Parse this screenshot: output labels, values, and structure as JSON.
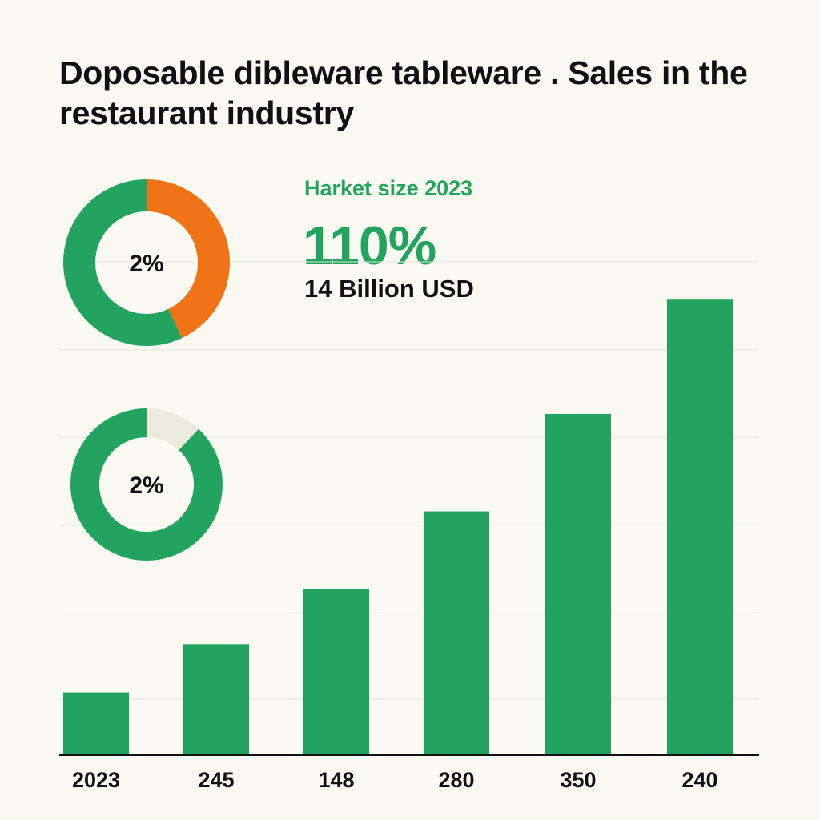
{
  "title": "Doposable dibleware tableware . Sales in the restaurant industry",
  "kpi": {
    "label": "Harket size 2023",
    "value": "110%",
    "sub": "14 Billion USD"
  },
  "donuts": [
    {
      "label": "2%",
      "fraction": 0.57,
      "colors": {
        "main": "#22a35f",
        "accent": "#f07316"
      }
    },
    {
      "label": "2%",
      "fraction": 0.88,
      "colors": {
        "main": "#22a35f",
        "accent": "#ece9de"
      }
    }
  ],
  "chart_data": {
    "type": "bar",
    "categories": [
      "2023",
      "245",
      "148",
      "280",
      "350",
      "240"
    ],
    "values": [
      78,
      138,
      206,
      303,
      424,
      566
    ],
    "ylim": [
      0,
      620
    ],
    "grid": true,
    "title": "",
    "xlabel": "",
    "ylabel": "",
    "colors": {
      "bar": "#22a35f",
      "grid": "#e6e4da",
      "axis": "#111111"
    }
  }
}
